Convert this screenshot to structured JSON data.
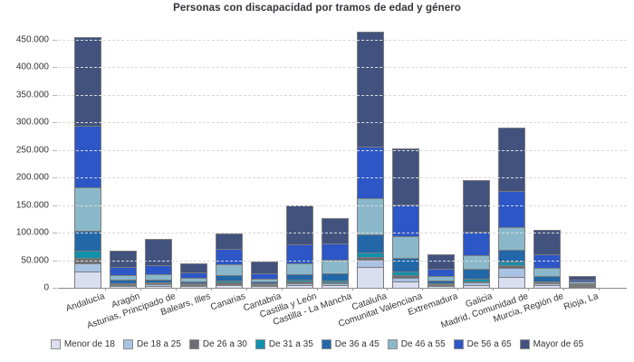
{
  "chart_data": {
    "type": "bar",
    "stacked": true,
    "title": "Personas con discapacidad por tramos de edad y género",
    "xlabel": "",
    "ylabel": "",
    "grid": true,
    "legend_position": "bottom",
    "ylim": [
      0,
      473000
    ],
    "y_tick_values": [
      0,
      50000,
      100000,
      150000,
      200000,
      250000,
      300000,
      350000,
      400000,
      450000
    ],
    "y_tick_labels": [
      "0",
      "50.000",
      "100.000",
      "150.000",
      "200.000",
      "250.000",
      "300.000",
      "350.000",
      "400.000",
      "450.000"
    ],
    "categories": [
      "Andalucía",
      "Aragón",
      "Asturias, Principado de",
      "Balears, Illes",
      "Canarias",
      "Cantabria",
      "Castilla y León",
      "Castilla - La Mancha",
      "Cataluña",
      "Comunitat Valenciana",
      "Extremadura",
      "Galicia",
      "Madrid, Comunidad de",
      "Murcia, Región de",
      "Rioja, La"
    ],
    "series": [
      {
        "name": "Menor de 18",
        "color": "#d9def0",
        "values": [
          30000,
          2700,
          3500,
          2500,
          4800,
          2700,
          5500,
          5500,
          37000,
          11000,
          2800,
          5500,
          19000,
          5200,
          1100
        ]
      },
      {
        "name": "De 18 a 25",
        "color": "#a8c3e4",
        "values": [
          14500,
          1800,
          2300,
          1300,
          2200,
          1500,
          3000,
          2500,
          13500,
          7000,
          1500,
          3800,
          16500,
          2300,
          600
        ]
      },
      {
        "name": "De 26 a 30",
        "color": "#6d6d74",
        "values": [
          9500,
          1500,
          2000,
          1200,
          2400,
          1100,
          2500,
          2500,
          6000,
          5500,
          1400,
          2800,
          5500,
          2000,
          500
        ]
      },
      {
        "name": "De 31 a 35",
        "color": "#1191ac",
        "values": [
          13000,
          2000,
          2200,
          1500,
          3800,
          1300,
          3500,
          3500,
          8000,
          6500,
          1700,
          4400,
          6500,
          2500,
          600
        ]
      },
      {
        "name": "De 36 a 45",
        "color": "#2268a8",
        "values": [
          36000,
          6500,
          5000,
          4300,
          9500,
          3400,
          11000,
          12000,
          33000,
          24000,
          5400,
          18000,
          22000,
          9500,
          1600
        ]
      },
      {
        "name": "De 46 a 55",
        "color": "#8ab8ca",
        "values": [
          80000,
          8500,
          10000,
          7200,
          19800,
          5500,
          19000,
          24500,
          64500,
          40000,
          8200,
          24000,
          40000,
          15500,
          2600
        ]
      },
      {
        "name": "De 56 a 65",
        "color": "#2d57c7",
        "values": [
          111000,
          14000,
          16500,
          8500,
          27500,
          9500,
          35000,
          30000,
          95000,
          57500,
          13500,
          43500,
          66000,
          24500,
          3800
        ]
      },
      {
        "name": "Mayor de 65",
        "color": "#41527f",
        "values": [
          161000,
          31000,
          47500,
          17500,
          29000,
          21000,
          69500,
          45500,
          208000,
          101500,
          25500,
          94000,
          115500,
          43500,
          7200
        ]
      }
    ]
  }
}
